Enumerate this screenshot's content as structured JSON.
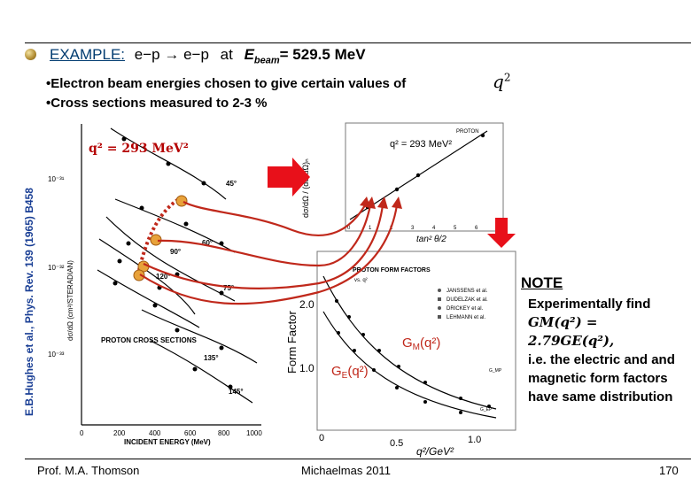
{
  "slide": {
    "title_example": "EXAMPLE:",
    "title_process": "e−p → e−p",
    "title_at": "at",
    "title_ebeam": "E",
    "title_ebeam_sub": "beam",
    "title_value": "= 529.5 MeV",
    "bullet1": "•Electron beam energies chosen to give certain values of",
    "bullet2": "•Cross sections measured to 2-3 %",
    "q2_symbol": "q",
    "q2_sup": "2",
    "side_reference": "E.B.Hughes et al., Phys. Rev. 139 (1965) B458",
    "q2_label": "q² = 293 MeV²",
    "note_heading": "NOTE",
    "note_line1": "Experimentally find",
    "note_line2": "GM(q²) = 2.79GE(q²),",
    "note_line3": "i.e. the electric and and magnetic form factors have same distribution",
    "footer_author": "Prof. M.A. Thomson",
    "footer_term": "Michaelmas 2011",
    "footer_page": "170"
  },
  "left_plot": {
    "ylabel": "dσ/dΩ (cm²/STERADIAN)",
    "xlabel": "INCIDENT ENERGY (MeV)",
    "xticks": [
      "0",
      "200",
      "400",
      "600",
      "800",
      "1000"
    ],
    "yticks": [
      "10⁻³¹",
      "10⁻³²",
      "10⁻³³"
    ],
    "angles": [
      "45°",
      "60°",
      "75°",
      "90°",
      "120°",
      "135°",
      "145°"
    ],
    "caption": "PROTON CROSS SECTIONS"
  },
  "top_plot": {
    "header": "PROTON",
    "q2_text": "q² = 293 MeV²",
    "ylabel": "dσ/dΩ / (dσ/dΩ)ₙ",
    "xlabel": "tan² θ/2",
    "xticks": [
      "0",
      "1",
      "2",
      "3",
      "4",
      "5",
      "6",
      "7"
    ]
  },
  "ff_plot": {
    "header": "PROTON FORM FACTORS",
    "sub": "vs. q²",
    "legend": [
      "JANSSENS et al.",
      "DUDELZAK et al.",
      "DRICKEY et al.",
      "LEHMANN et al."
    ],
    "ylabel": "Form Factor",
    "yticks": [
      "2.0",
      "1.0"
    ],
    "xticks": [
      "0",
      "0.5",
      "1.0"
    ],
    "xlabel": "q²/GeV²",
    "gm_label": "G",
    "gm_sub": "M",
    "gm_arg": "(q²)",
    "ge_label": "G",
    "ge_sub": "E",
    "ge_arg": "(q²)",
    "gmp": "G_MP",
    "gep": "G_EP"
  },
  "colors": {
    "arrow_red": "#e8101a",
    "title_blue": "#003b70",
    "ref_blue": "#1a3f95",
    "highlight": "#e8a23a"
  }
}
